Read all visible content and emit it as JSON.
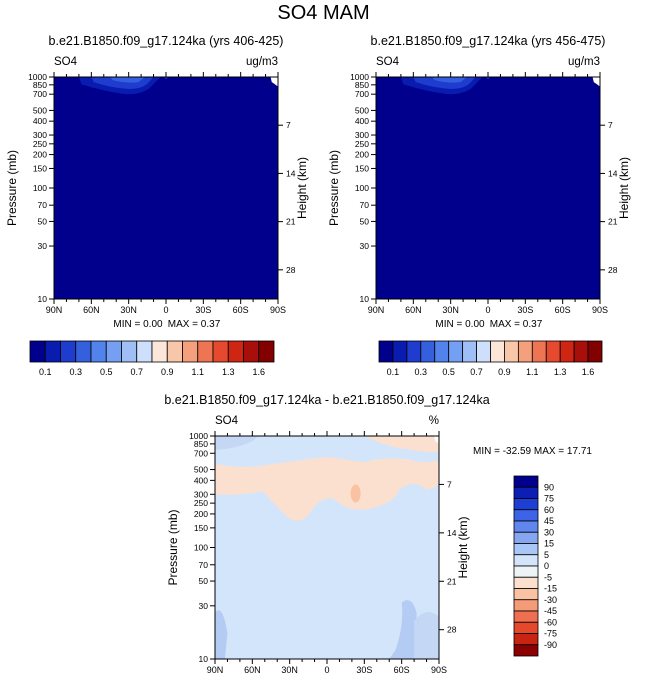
{
  "page": {
    "title": "SO4 MAM"
  },
  "chart_data": [
    {
      "type": "heatmap",
      "id": "panel-left",
      "title": "b.e21.B1850.f09_g17.124ka (yrs 406-425)",
      "variable": "SO4",
      "units": "ug/m3",
      "ylabel": "Pressure (mb)",
      "ylabel_right": "Height (km)",
      "x_ticks": [
        "90N",
        "60N",
        "30N",
        "0",
        "30S",
        "60S",
        "90S"
      ],
      "y_ticks": [
        "10",
        "30",
        "50",
        "70",
        "100",
        "150",
        "200",
        "250",
        "300",
        "400",
        "500",
        "700",
        "850",
        "1000"
      ],
      "y_ticks_right": [
        "28",
        "21",
        "14",
        "7"
      ],
      "min_label": "MIN = 0.00",
      "max_label": "MAX = 0.37",
      "ylim": [
        1000,
        10
      ],
      "xlim": [
        90,
        -90
      ],
      "background_color": "#00008c",
      "features": [
        {
          "name": "low-level-enhancement",
          "lat_range": [
            60,
            0
          ],
          "p_top": 700,
          "value": 0.2
        }
      ]
    },
    {
      "type": "heatmap",
      "id": "panel-right",
      "title": "b.e21.B1850.f09_g17.124ka (yrs 456-475)",
      "variable": "SO4",
      "units": "ug/m3",
      "ylabel": "Pressure (mb)",
      "ylabel_right": "Height (km)",
      "x_ticks": [
        "90N",
        "60N",
        "30N",
        "0",
        "30S",
        "60S",
        "90S"
      ],
      "y_ticks": [
        "10",
        "30",
        "50",
        "70",
        "100",
        "150",
        "200",
        "250",
        "300",
        "400",
        "500",
        "700",
        "850",
        "1000"
      ],
      "y_ticks_right": [
        "28",
        "21",
        "14",
        "7"
      ],
      "min_label": "MIN = 0.00",
      "max_label": "MAX = 0.37",
      "ylim": [
        1000,
        10
      ],
      "xlim": [
        90,
        -90
      ],
      "background_color": "#00008c",
      "features": [
        {
          "name": "low-level-enhancement",
          "lat_range": [
            60,
            0
          ],
          "p_top": 700,
          "value": 0.2
        }
      ]
    },
    {
      "type": "heatmap",
      "id": "panel-diff",
      "title": "b.e21.B1850.f09_g17.124ka - b.e21.B1850.f09_g17.124ka",
      "variable": "SO4",
      "units": "%",
      "ylabel": "Pressure (mb)",
      "ylabel_right": "Height (km)",
      "x_ticks": [
        "90N",
        "60N",
        "30N",
        "0",
        "30S",
        "60S",
        "90S"
      ],
      "y_ticks": [
        "10",
        "30",
        "50",
        "70",
        "100",
        "150",
        "200",
        "250",
        "300",
        "400",
        "500",
        "700",
        "850",
        "1000"
      ],
      "y_ticks_right": [
        "28",
        "21",
        "14",
        "7"
      ],
      "minmax_label": "MIN = -32.59  MAX =  17.71",
      "ylim": [
        1000,
        10
      ],
      "xlim": [
        90,
        -90
      ],
      "background_color": "#d3e5fb",
      "features": [
        {
          "name": "upper-negative-north",
          "value": -5
        },
        {
          "name": "upper-negative-south",
          "value": -5
        },
        {
          "name": "mid-positive-band",
          "value": 5
        },
        {
          "name": "positive-core",
          "value": 15
        }
      ]
    }
  ],
  "colorbar_abs": {
    "colors": [
      "#00008c",
      "#0a1bb0",
      "#1e3ccd",
      "#3560dd",
      "#5282ec",
      "#759ff2",
      "#9fbef6",
      "#cddffb",
      "#fbe6d9",
      "#f8c6a8",
      "#f4a07c",
      "#ee7554",
      "#e54a2f",
      "#cf2614",
      "#a80f0a",
      "#820000"
    ],
    "labels": [
      "0.1",
      "0.3",
      "0.5",
      "0.7",
      "0.9",
      "1.1",
      "1.3",
      "1.6"
    ]
  },
  "colorbar_diff": {
    "colors": [
      "#00008c",
      "#0b1fb5",
      "#1d3fd3",
      "#3d64e6",
      "#6186ee",
      "#86a6f2",
      "#aac6f6",
      "#d3e5fb",
      "#eef3f6",
      "#fbe0cf",
      "#f8c2a3",
      "#f49c77",
      "#ee7050",
      "#e6482c",
      "#c72412",
      "#8b0000"
    ],
    "labels": [
      "90",
      "75",
      "60",
      "45",
      "30",
      "15",
      "5",
      "0",
      "-5",
      "-15",
      "-30",
      "-45",
      "-60",
      "-75",
      "-90"
    ]
  }
}
